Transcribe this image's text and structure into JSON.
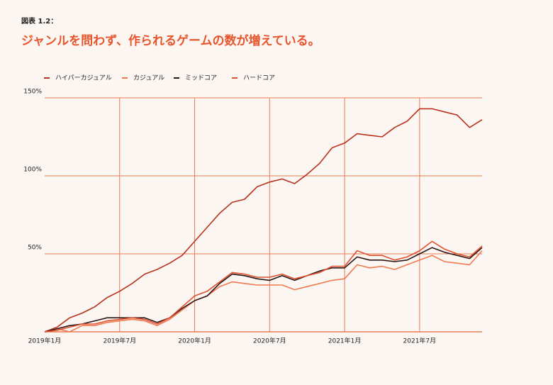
{
  "chart_data": {
    "type": "line",
    "figure_label": "図表 1.2：",
    "title": "ジャンルを問わず、作られるゲームの数が増えている。",
    "categories": [
      "2019年1月",
      null,
      null,
      null,
      null,
      null,
      "2019年7月",
      null,
      null,
      null,
      null,
      null,
      "2020年1月",
      null,
      null,
      null,
      null,
      null,
      "2020年7月",
      null,
      null,
      null,
      null,
      null,
      "2021年1月",
      null,
      null,
      null,
      null,
      null,
      "2021年7月",
      null,
      null,
      null,
      null,
      null
    ],
    "series": [
      {
        "name": "ハイパーカジュアル",
        "color": "#b8321c",
        "values": [
          0,
          3,
          9,
          12,
          16,
          22,
          26,
          31,
          37,
          40,
          44,
          49,
          58,
          67,
          76,
          83,
          85,
          93,
          96,
          98,
          95,
          101,
          108,
          118,
          121,
          127,
          126,
          125,
          131,
          135,
          143,
          143,
          141,
          139,
          131,
          136
        ]
      },
      {
        "name": "カジュアル",
        "color": "#f07a50",
        "values": [
          0,
          2,
          0,
          4,
          4,
          6,
          7,
          8,
          7,
          4,
          8,
          14,
          20,
          23,
          29,
          32,
          31,
          30,
          30,
          30,
          27,
          29,
          31,
          33,
          34,
          43,
          41,
          42,
          40,
          43,
          46,
          49,
          45,
          44,
          43,
          52
        ]
      },
      {
        "name": "ミッドコア",
        "color": "#2a1512",
        "values": [
          0,
          2,
          4,
          5,
          7,
          9,
          9,
          9,
          9,
          6,
          9,
          15,
          20,
          23,
          31,
          37,
          36,
          34,
          33,
          36,
          33,
          36,
          39,
          41,
          41,
          48,
          46,
          46,
          45,
          46,
          50,
          54,
          51,
          49,
          47,
          54
        ]
      },
      {
        "name": "ハードコア",
        "color": "#e0502e",
        "values": [
          0,
          1,
          3,
          5,
          5,
          7,
          8,
          9,
          8,
          5,
          9,
          16,
          23,
          26,
          32,
          38,
          37,
          35,
          35,
          37,
          34,
          36,
          38,
          42,
          42,
          52,
          49,
          49,
          46,
          48,
          52,
          58,
          53,
          50,
          48,
          55
        ]
      }
    ],
    "ylim": [
      0,
      150
    ],
    "yticks": [
      {
        "value": 50,
        "label": "50%"
      },
      {
        "value": 100,
        "label": "100%"
      },
      {
        "value": 150,
        "label": "150%"
      }
    ],
    "grid": true,
    "grid_color": "#ea7a52",
    "legend": "top-left"
  }
}
